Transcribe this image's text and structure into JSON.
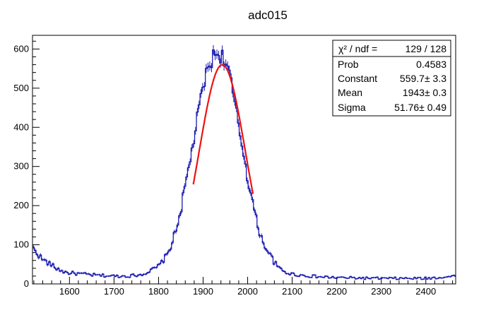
{
  "chart_data": {
    "type": "histogram",
    "title": "adc015",
    "xlim": [
      1517,
      2467
    ],
    "ylim": [
      0,
      635
    ],
    "x_ticks": [
      1600,
      1700,
      1800,
      1900,
      2000,
      2100,
      2200,
      2300,
      2400
    ],
    "y_ticks": [
      0,
      100,
      200,
      300,
      400,
      500,
      600
    ],
    "histogram": {
      "color": "#1a1ab0",
      "bin_width": 4,
      "x": [
        1520,
        1530,
        1540,
        1550,
        1560,
        1570,
        1580,
        1590,
        1600,
        1620,
        1640,
        1660,
        1680,
        1700,
        1720,
        1740,
        1760,
        1780,
        1800,
        1820,
        1830,
        1840,
        1850,
        1860,
        1870,
        1880,
        1890,
        1900,
        1910,
        1920,
        1930,
        1940,
        1950,
        1960,
        1970,
        1980,
        1990,
        2000,
        2010,
        2020,
        2030,
        2040,
        2050,
        2060,
        2070,
        2080,
        2090,
        2100,
        2120,
        2140,
        2160,
        2180,
        2200,
        2250,
        2300,
        2350,
        2400,
        2467
      ],
      "y": [
        90,
        75,
        62,
        55,
        48,
        40,
        35,
        30,
        28,
        26,
        24,
        22,
        21,
        20,
        20,
        21,
        24,
        32,
        45,
        75,
        105,
        140,
        190,
        250,
        310,
        375,
        440,
        505,
        545,
        575,
        590,
        585,
        570,
        530,
        465,
        400,
        340,
        270,
        215,
        160,
        120,
        95,
        75,
        55,
        40,
        33,
        28,
        25,
        22,
        20,
        18,
        17,
        16,
        15,
        14,
        14,
        14,
        20
      ]
    },
    "fit": {
      "function": "gaus",
      "color": "#ee1111",
      "constant": 559.7,
      "mean": 1943,
      "sigma": 51.76,
      "range": [
        1878,
        2012
      ]
    },
    "stats_box": {
      "header_label": "χ² / ndf =",
      "header_value": "129 / 128",
      "rows": [
        {
          "label": "Prob",
          "value": "0.4583"
        },
        {
          "label": "Constant",
          "value": "559.7± 3.3"
        },
        {
          "label": "Mean",
          "value": "1943± 0.3"
        },
        {
          "label": "Sigma",
          "value": "51.76± 0.49"
        }
      ]
    }
  }
}
